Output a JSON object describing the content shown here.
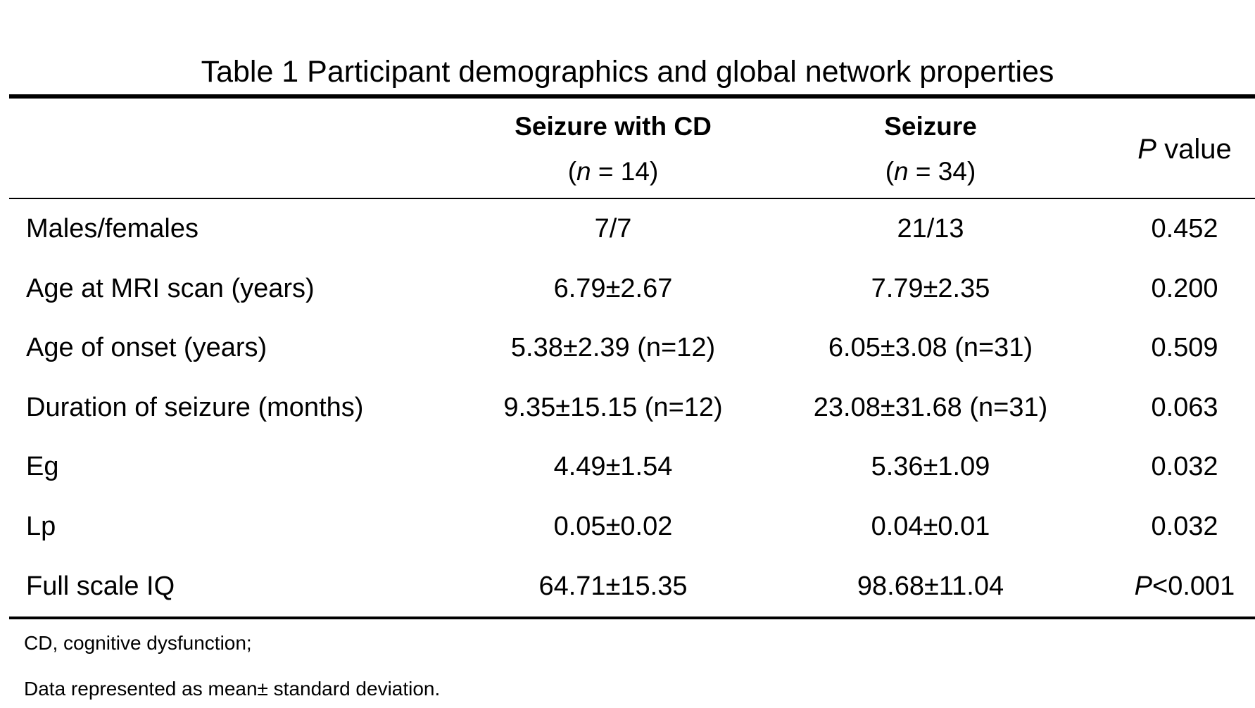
{
  "title": "Table 1 Participant demographics and global network properties",
  "header": {
    "col1_name": "Seizure with CD",
    "col1_n_prefix": "(",
    "col1_n_var": "n",
    "col1_n_rest": " = 14)",
    "col2_name": "Seizure",
    "col2_n_prefix": "(",
    "col2_n_var": "n",
    "col2_n_rest": " = 34)",
    "p_var": "P",
    "p_rest": " value"
  },
  "rows": [
    {
      "label": "Males/females",
      "seizure_cd": "7/7",
      "seizure": "21/13",
      "p_prefix": "",
      "p": "0.452"
    },
    {
      "label": "Age at MRI scan (years)",
      "seizure_cd": "6.79±2.67",
      "seizure": "7.79±2.35",
      "p_prefix": "",
      "p": "0.200"
    },
    {
      "label": "Age of onset (years)",
      "seizure_cd": "5.38±2.39 (n=12)",
      "seizure": "6.05±3.08 (n=31)",
      "p_prefix": "",
      "p": "0.509"
    },
    {
      "label": "Duration of seizure (months)",
      "seizure_cd": "9.35±15.15 (n=12)",
      "seizure": "23.08±31.68 (n=31)",
      "p_prefix": "",
      "p": "0.063"
    },
    {
      "label": "Eg",
      "seizure_cd": "4.49±1.54",
      "seizure": "5.36±1.09",
      "p_prefix": "",
      "p": "0.032"
    },
    {
      "label": "Lp",
      "seizure_cd": "0.05±0.02",
      "seizure": "0.04±0.01",
      "p_prefix": "",
      "p": "0.032"
    },
    {
      "label": "Full scale IQ",
      "seizure_cd": "64.71±15.35",
      "seizure": "98.68±11.04",
      "p_prefix": "P",
      "p": "<0.001"
    }
  ],
  "notes": {
    "abbrev": "CD, cognitive dysfunction;",
    "data": "Data represented as mean± standard deviation."
  }
}
